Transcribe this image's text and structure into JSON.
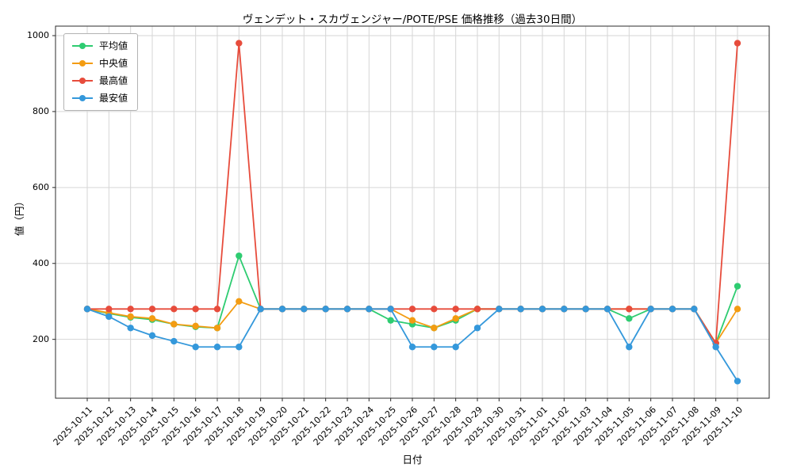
{
  "chart_data": {
    "type": "line",
    "title": "ヴェンデット・スカヴェンジャー/POTE/PSE 価格推移（過去30日間）",
    "xlabel": "日付",
    "ylabel": "値（円）",
    "grid": true,
    "legend_position": "upper left",
    "ylim": [
      45,
      1025
    ],
    "yticks": [
      200,
      400,
      600,
      800,
      1000
    ],
    "x": [
      "2025-10-11",
      "2025-10-12",
      "2025-10-13",
      "2025-10-14",
      "2025-10-15",
      "2025-10-16",
      "2025-10-17",
      "2025-10-18",
      "2025-10-19",
      "2025-10-20",
      "2025-10-21",
      "2025-10-22",
      "2025-10-23",
      "2025-10-24",
      "2025-10-25",
      "2025-10-26",
      "2025-10-27",
      "2025-10-28",
      "2025-10-29",
      "2025-10-30",
      "2025-10-31",
      "2025-11-01",
      "2025-11-02",
      "2025-11-03",
      "2025-11-04",
      "2025-11-05",
      "2025-11-06",
      "2025-11-07",
      "2025-11-08",
      "2025-11-09",
      "2025-11-10"
    ],
    "series": [
      {
        "name": "平均値",
        "color": "#2ecc71",
        "values": [
          280,
          268,
          258,
          252,
          240,
          233,
          230,
          420,
          280,
          280,
          280,
          280,
          280,
          280,
          250,
          240,
          230,
          250,
          280,
          280,
          280,
          280,
          280,
          280,
          280,
          255,
          280,
          280,
          280,
          190,
          340
        ]
      },
      {
        "name": "中央値",
        "color": "#f39c12",
        "values": [
          280,
          270,
          260,
          255,
          240,
          235,
          230,
          300,
          280,
          280,
          280,
          280,
          280,
          280,
          280,
          250,
          230,
          255,
          280,
          280,
          280,
          280,
          280,
          280,
          280,
          280,
          280,
          280,
          280,
          190,
          280
        ]
      },
      {
        "name": "最高値",
        "color": "#e74c3c",
        "values": [
          280,
          280,
          280,
          280,
          280,
          280,
          280,
          980,
          280,
          280,
          280,
          280,
          280,
          280,
          280,
          280,
          280,
          280,
          280,
          280,
          280,
          280,
          280,
          280,
          280,
          280,
          280,
          280,
          280,
          190,
          980
        ]
      },
      {
        "name": "最安値",
        "color": "#3498db",
        "values": [
          280,
          260,
          230,
          210,
          195,
          180,
          180,
          180,
          280,
          280,
          280,
          280,
          280,
          280,
          280,
          180,
          180,
          180,
          230,
          280,
          280,
          280,
          280,
          280,
          280,
          180,
          280,
          280,
          280,
          180,
          90
        ]
      }
    ]
  }
}
